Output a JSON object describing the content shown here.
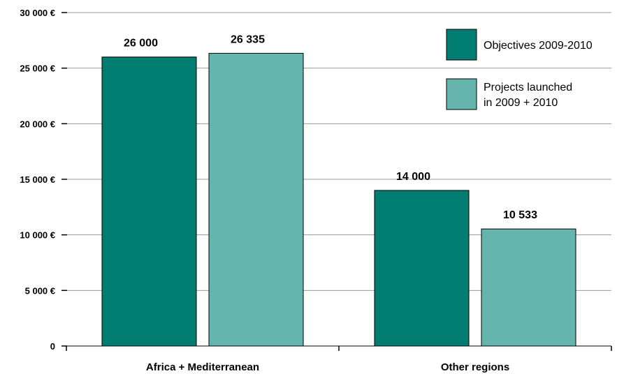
{
  "chart_data": {
    "type": "bar",
    "categories": [
      "Africa + Mediterranean",
      "Other regions"
    ],
    "series": [
      {
        "name": "Objectives 2009-2010",
        "values": [
          26000,
          14000
        ],
        "color": "#007d70",
        "labels": [
          "26 000",
          "14 000"
        ]
      },
      {
        "name_lines": [
          "Projects launched",
          "in 2009 + 2010"
        ],
        "values": [
          26335,
          10533
        ],
        "color": "#66b4ae",
        "labels": [
          "26 335",
          "10 533"
        ]
      }
    ],
    "y_ticks": [
      0,
      5000,
      10000,
      15000,
      20000,
      25000,
      30000
    ],
    "y_tick_labels": [
      "0",
      "5 000 €",
      "10 000 €",
      "15 000 €",
      "20 000 €",
      "25 000 €",
      "30 000 €"
    ],
    "ylim": [
      0,
      30000
    ],
    "grid": true,
    "legend_position": "top-right",
    "title": "",
    "xlabel": "",
    "ylabel": ""
  }
}
